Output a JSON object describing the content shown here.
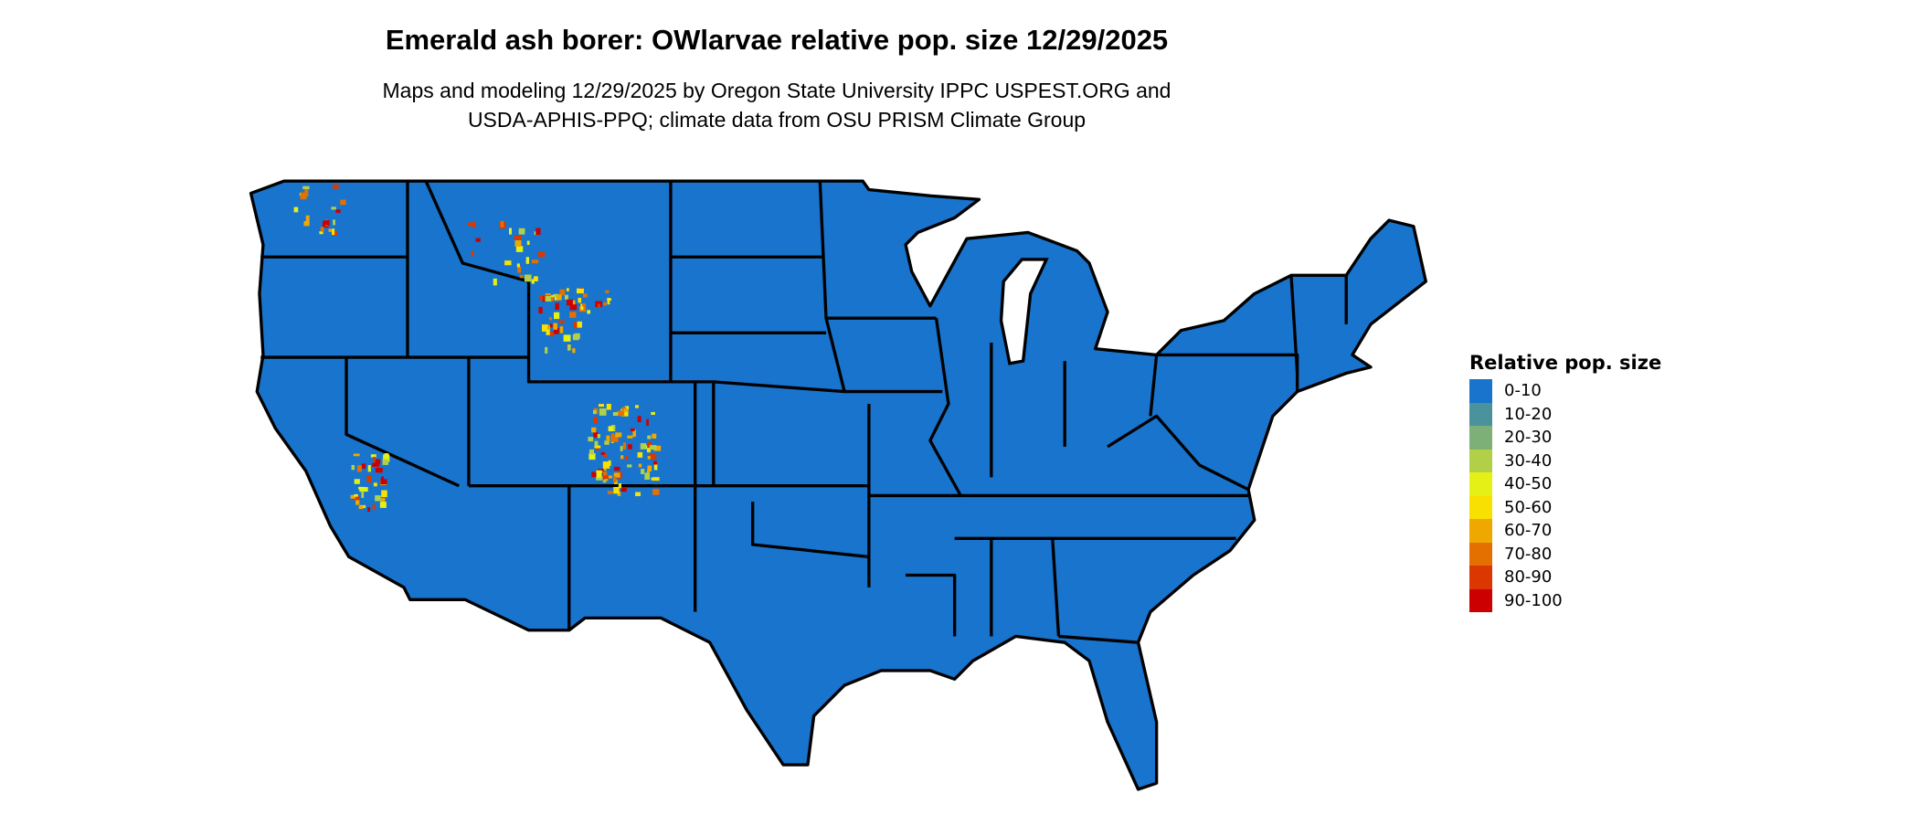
{
  "title": "Emerald ash borer: OWlarvae relative pop. size 12/29/2025",
  "subtitle_line1": "Maps and modeling 12/29/2025 by Oregon State University IPPC USPEST.ORG and",
  "subtitle_line2": "USDA-APHIS-PPQ; climate data from OSU PRISM Climate Group",
  "map": {
    "base_color": "#1874cd",
    "border_color": "#000000",
    "region": "Contiguous United States"
  },
  "legend": {
    "title": "Relative pop. size",
    "items": [
      {
        "label": "0-10",
        "color": "#1874cd"
      },
      {
        "label": "10-20",
        "color": "#4a929c"
      },
      {
        "label": "20-30",
        "color": "#7cb077"
      },
      {
        "label": "30-40",
        "color": "#b2d047"
      },
      {
        "label": "40-50",
        "color": "#e5f016"
      },
      {
        "label": "50-60",
        "color": "#f8e000"
      },
      {
        "label": "60-70",
        "color": "#efa800"
      },
      {
        "label": "70-80",
        "color": "#e47000"
      },
      {
        "label": "80-90",
        "color": "#da3800"
      },
      {
        "label": "90-100",
        "color": "#cc0000"
      }
    ]
  }
}
